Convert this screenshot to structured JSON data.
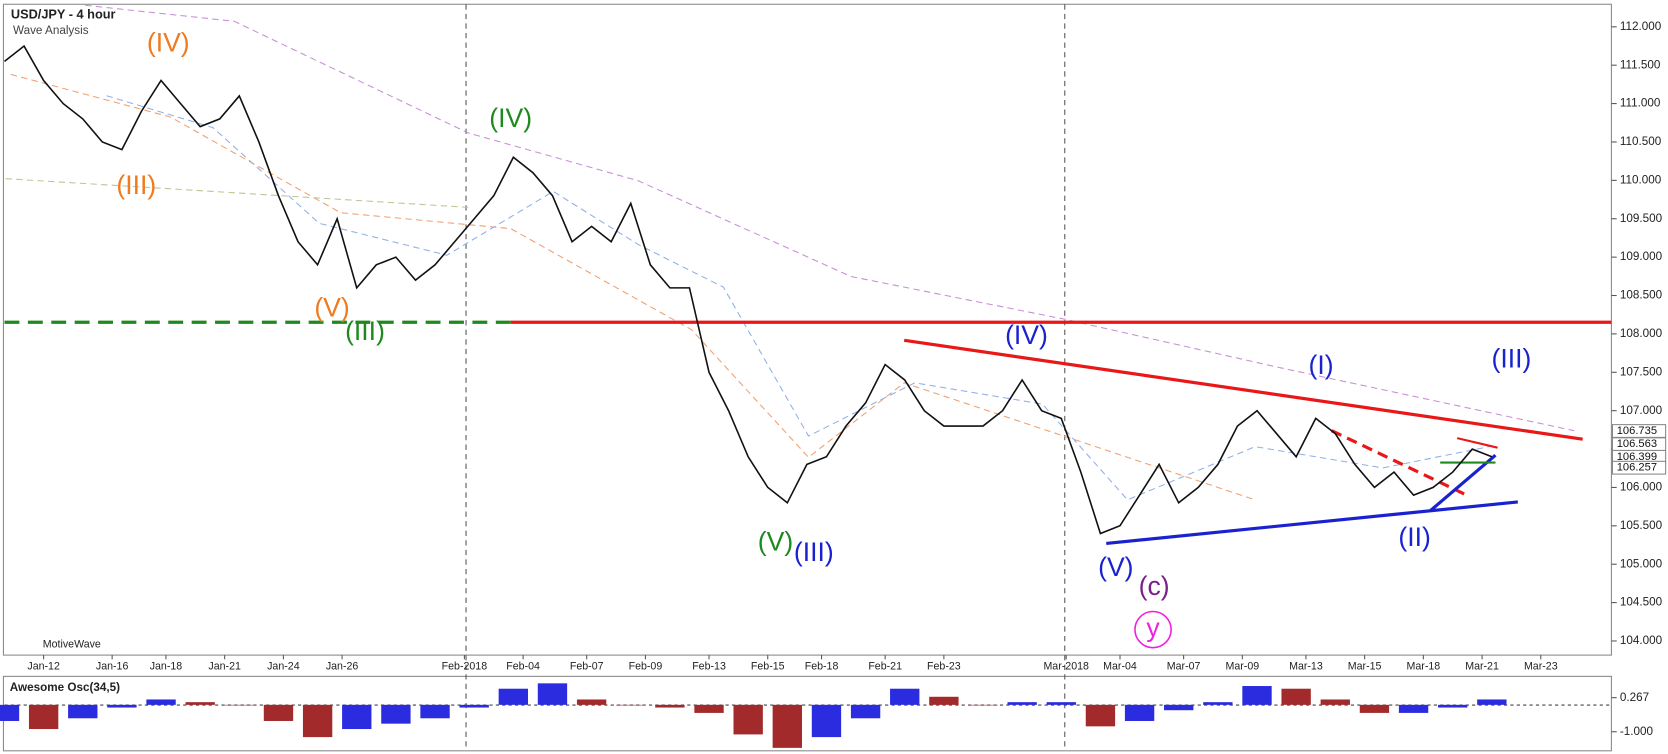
{
  "chart_data": [
    {
      "type": "line",
      "title": "USD/JPY - 4 hour",
      "subtitle": "Wave Analysis",
      "watermark": "MotiveWave",
      "x": [
        0,
        4,
        8,
        12,
        16,
        20,
        24,
        28,
        32,
        36,
        40,
        44,
        48,
        52,
        56,
        60,
        64,
        68,
        72,
        76,
        80,
        84,
        88,
        92,
        96,
        100,
        104,
        108,
        112,
        116,
        120,
        124,
        128,
        132,
        136,
        140,
        144,
        148,
        152,
        156,
        160,
        164,
        168,
        172,
        176,
        180,
        184,
        188,
        192,
        196,
        200,
        204,
        208,
        212,
        216,
        220,
        224,
        228,
        232,
        236,
        240,
        244,
        248,
        252,
        256,
        260,
        264,
        268,
        272,
        276,
        280,
        284,
        288,
        292,
        296,
        300,
        304
      ],
      "values": [
        111.55,
        111.75,
        111.3,
        111.0,
        110.8,
        110.5,
        110.4,
        110.9,
        111.3,
        111.0,
        110.7,
        110.8,
        111.1,
        110.5,
        109.8,
        109.2,
        108.9,
        109.5,
        108.6,
        108.9,
        109.0,
        108.7,
        108.9,
        109.2,
        109.5,
        109.8,
        110.3,
        110.1,
        109.8,
        109.2,
        109.4,
        109.2,
        109.7,
        108.9,
        108.6,
        108.6,
        107.5,
        107.0,
        106.4,
        106.0,
        105.8,
        106.3,
        106.4,
        106.8,
        107.1,
        107.6,
        107.4,
        107.0,
        106.8,
        106.8,
        106.8,
        107.0,
        107.4,
        107.0,
        106.9,
        106.2,
        105.4,
        105.5,
        105.9,
        106.3,
        105.8,
        106.0,
        106.3,
        106.8,
        107.0,
        106.7,
        106.4,
        106.9,
        106.7,
        106.3,
        106.0,
        106.2,
        105.9,
        106.0,
        106.2,
        106.5,
        106.4
      ],
      "color": "#111111",
      "xlim": [
        0,
        328
      ],
      "xticks": [
        {
          "value": 8,
          "label": "Jan-12"
        },
        {
          "value": 22,
          "label": "Jan-16"
        },
        {
          "value": 33,
          "label": "Jan-18"
        },
        {
          "value": 45,
          "label": "Jan-21"
        },
        {
          "value": 57,
          "label": "Jan-24"
        },
        {
          "value": 69,
          "label": "Jan-26"
        },
        {
          "value": 94,
          "label": "Feb-2018"
        },
        {
          "value": 106,
          "label": "Feb-04"
        },
        {
          "value": 119,
          "label": "Feb-07"
        },
        {
          "value": 131,
          "label": "Feb-09"
        },
        {
          "value": 144,
          "label": "Feb-13"
        },
        {
          "value": 156,
          "label": "Feb-15"
        },
        {
          "value": 167,
          "label": "Feb-18"
        },
        {
          "value": 180,
          "label": "Feb-21"
        },
        {
          "value": 192,
          "label": "Feb-23"
        },
        {
          "value": 217,
          "label": "Mar-2018"
        },
        {
          "value": 228,
          "label": "Mar-04"
        },
        {
          "value": 241,
          "label": "Mar-07"
        },
        {
          "value": 253,
          "label": "Mar-09"
        },
        {
          "value": 266,
          "label": "Mar-13"
        },
        {
          "value": 278,
          "label": "Mar-15"
        },
        {
          "value": 290,
          "label": "Mar-18"
        },
        {
          "value": 302,
          "label": "Mar-21"
        },
        {
          "value": 314,
          "label": "Mar-23"
        }
      ],
      "ylim": [
        103.83,
        112.28
      ],
      "yticks": [
        {
          "value": 104,
          "label": "104.000"
        },
        {
          "value": 104.5,
          "label": "104.500"
        },
        {
          "value": 105,
          "label": "105.000"
        },
        {
          "value": 105.5,
          "label": "105.500"
        },
        {
          "value": 106,
          "label": "106.000"
        },
        {
          "value": 106.5,
          "label": "106.500"
        },
        {
          "value": 107,
          "label": "107.000"
        },
        {
          "value": 107.5,
          "label": "107.500"
        },
        {
          "value": 108,
          "label": "108.000"
        },
        {
          "value": 108.5,
          "label": "108.500"
        },
        {
          "value": 109,
          "label": "109.000"
        },
        {
          "value": 109.5,
          "label": "109.500"
        },
        {
          "value": 110,
          "label": "110.000"
        },
        {
          "value": 110.5,
          "label": "110.500"
        },
        {
          "value": 111,
          "label": "111.000"
        },
        {
          "value": 111.5,
          "label": "111.500"
        },
        {
          "value": 112,
          "label": "112.000"
        }
      ],
      "price_tags": [
        {
          "value": 106.735,
          "label": "106.735"
        },
        {
          "value": 106.563,
          "label": "106.563"
        },
        {
          "value": 106.399,
          "label": "106.399"
        },
        {
          "value": 106.257,
          "label": "106.257"
        }
      ],
      "annotations": [
        {
          "text": "(IV)",
          "color": "#f07a1e"
        },
        {
          "text": "(III)",
          "color": "#f07a1e"
        },
        {
          "text": "(V)",
          "color": "#f07a1e"
        },
        {
          "text": "(IV)",
          "color": "#1e8a1e"
        },
        {
          "text": "(III)",
          "color": "#1e8a1e"
        },
        {
          "text": "(V)",
          "color": "#1e8a1e"
        },
        {
          "text": "(III)",
          "color": "#1a22d0"
        },
        {
          "text": "(IV)",
          "color": "#1a22d0"
        },
        {
          "text": "(V)",
          "color": "#1a22d0"
        },
        {
          "text": "(c)",
          "color": "#7a1e8a"
        },
        {
          "text": "y",
          "color": "#f020e0"
        },
        {
          "text": "(I)",
          "color": "#1a22d0"
        },
        {
          "text": "(II)",
          "color": "#1a22d0"
        },
        {
          "text": "(III)",
          "color": "#1a22d0"
        }
      ]
    },
    {
      "type": "bar",
      "title": "Awesome Osc(34,5)",
      "x": [
        0,
        8,
        16,
        24,
        32,
        40,
        48,
        56,
        64,
        72,
        80,
        88,
        96,
        104,
        112,
        120,
        128,
        136,
        144,
        152,
        160,
        168,
        176,
        184,
        192,
        200,
        208,
        216,
        224,
        232,
        240,
        248,
        256,
        264,
        272,
        280,
        288,
        296,
        304
      ],
      "values": [
        -0.6,
        -0.9,
        -0.5,
        -0.1,
        0.2,
        0.1,
        0.0,
        -0.6,
        -1.2,
        -0.9,
        -0.7,
        -0.5,
        -0.1,
        0.6,
        0.8,
        0.2,
        0.0,
        -0.1,
        -0.3,
        -1.1,
        -1.6,
        -1.2,
        -0.5,
        0.6,
        0.3,
        0.0,
        0.1,
        0.1,
        -0.8,
        -0.6,
        -0.2,
        0.1,
        0.7,
        0.6,
        0.2,
        -0.3,
        -0.3,
        -0.1,
        0.2
      ],
      "colors": [
        "#2b2be0",
        "#a32a2a"
      ],
      "xlim": [
        0,
        328
      ],
      "ylim": [
        -1.71,
        1.02
      ],
      "yticks": [
        {
          "value": 0.267,
          "label": "0.267"
        },
        {
          "value": -1,
          "label": "-1.000"
        }
      ]
    }
  ]
}
